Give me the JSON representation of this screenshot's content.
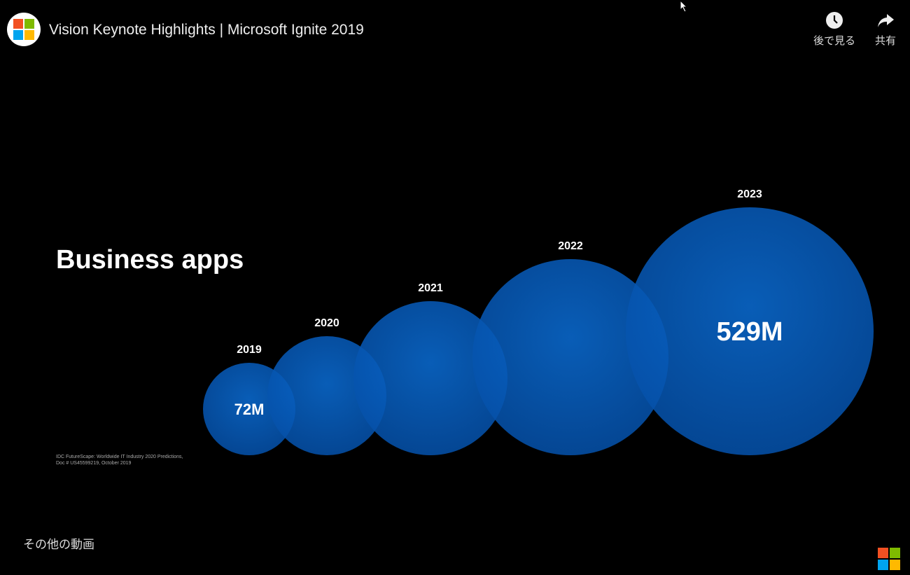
{
  "header": {
    "title": "Vision Keynote Highlights | Microsoft Ignite 2019",
    "watch_later": "後で見る",
    "share": "共有",
    "logo_colors": [
      "#f25022",
      "#7fba00",
      "#00a4ef",
      "#ffb900"
    ]
  },
  "slide": {
    "heading": "Business apps",
    "citation_line1": "IDC FutureScape: Worldwide IT Industry 2020 Predictions,",
    "citation_line2": "Doc # US45599219, October 2019"
  },
  "footer": {
    "more_videos": "その他の動画"
  },
  "chart_data": {
    "type": "bubble",
    "title": "Business apps",
    "categories": [
      "2019",
      "2020",
      "2021",
      "2022",
      "2023"
    ],
    "labels": [
      "72M",
      null,
      null,
      null,
      "529M"
    ],
    "values": [
      72,
      null,
      null,
      null,
      529
    ],
    "unit": "M",
    "color": "#0062c4"
  }
}
